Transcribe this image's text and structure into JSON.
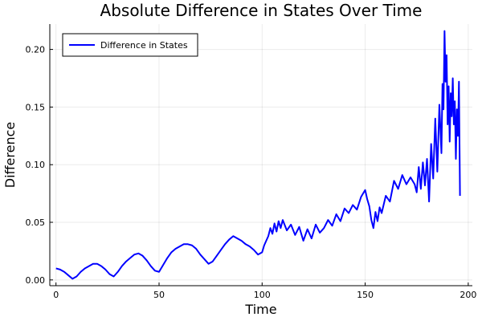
{
  "chart_data": {
    "type": "line",
    "title": "Absolute Difference in States Over Time",
    "xlabel": "Time",
    "ylabel": "Difference",
    "xlim": [
      -3,
      202
    ],
    "ylim": [
      -0.005,
      0.222
    ],
    "x_ticks": [
      0,
      50,
      100,
      150,
      200
    ],
    "y_ticks": [
      0.0,
      0.05,
      0.1,
      0.15,
      0.2
    ],
    "x_tick_labels": [
      "0",
      "50",
      "100",
      "150",
      "200"
    ],
    "y_tick_labels": [
      "0.00",
      "0.05",
      "0.10",
      "0.15",
      "0.20"
    ],
    "grid": true,
    "legend_position": "top-left",
    "series": [
      {
        "name": "Difference in States",
        "color": "#0000ff",
        "x": [
          0,
          2,
          4,
          6,
          8,
          10,
          12,
          14,
          16,
          18,
          20,
          22,
          24,
          26,
          28,
          30,
          32,
          34,
          36,
          38,
          40,
          42,
          44,
          46,
          48,
          50,
          52,
          54,
          56,
          58,
          60,
          62,
          64,
          66,
          68,
          70,
          72,
          74,
          76,
          78,
          80,
          82,
          84,
          86,
          88,
          90,
          92,
          94,
          96,
          98,
          100,
          101,
          102,
          103,
          104,
          105,
          106,
          107,
          108,
          109,
          110,
          112,
          114,
          116,
          118,
          120,
          122,
          124,
          126,
          128,
          130,
          132,
          134,
          136,
          138,
          140,
          142,
          144,
          146,
          148,
          150,
          151,
          152,
          153,
          154,
          155,
          156,
          157,
          158,
          160,
          162,
          164,
          166,
          168,
          170,
          172,
          174,
          175,
          176,
          177,
          178,
          179,
          180,
          181,
          182,
          183,
          184,
          185,
          186,
          187,
          187.5,
          188,
          188.5,
          189,
          189.5,
          190,
          190.5,
          191,
          191.5,
          192,
          192.5,
          193,
          193.5,
          194,
          194.5,
          195,
          195.5,
          196
        ],
        "values": [
          0.01,
          0.009,
          0.007,
          0.004,
          0.001,
          0.003,
          0.007,
          0.01,
          0.012,
          0.014,
          0.014,
          0.012,
          0.009,
          0.005,
          0.003,
          0.007,
          0.012,
          0.016,
          0.019,
          0.022,
          0.023,
          0.021,
          0.017,
          0.012,
          0.008,
          0.007,
          0.013,
          0.019,
          0.024,
          0.027,
          0.029,
          0.031,
          0.031,
          0.03,
          0.027,
          0.022,
          0.018,
          0.014,
          0.016,
          0.021,
          0.026,
          0.031,
          0.035,
          0.038,
          0.036,
          0.034,
          0.031,
          0.029,
          0.026,
          0.022,
          0.024,
          0.03,
          0.034,
          0.038,
          0.045,
          0.04,
          0.049,
          0.042,
          0.051,
          0.045,
          0.052,
          0.043,
          0.048,
          0.039,
          0.046,
          0.034,
          0.044,
          0.036,
          0.048,
          0.041,
          0.045,
          0.052,
          0.047,
          0.057,
          0.051,
          0.062,
          0.058,
          0.065,
          0.061,
          0.072,
          0.078,
          0.07,
          0.064,
          0.052,
          0.045,
          0.059,
          0.051,
          0.063,
          0.058,
          0.073,
          0.068,
          0.086,
          0.079,
          0.091,
          0.083,
          0.089,
          0.083,
          0.076,
          0.098,
          0.079,
          0.102,
          0.082,
          0.105,
          0.068,
          0.118,
          0.088,
          0.14,
          0.094,
          0.152,
          0.11,
          0.17,
          0.148,
          0.216,
          0.172,
          0.195,
          0.135,
          0.168,
          0.12,
          0.162,
          0.142,
          0.175,
          0.135,
          0.155,
          0.105,
          0.148,
          0.125,
          0.172,
          0.073
        ]
      }
    ]
  }
}
